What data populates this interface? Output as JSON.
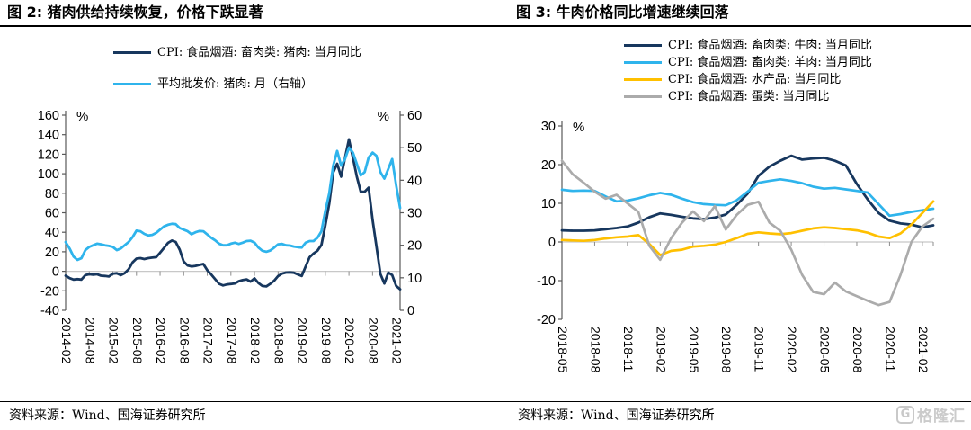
{
  "panels": [
    {
      "title": "图 2:  猪肉供给持续恢复，价格下跌显著",
      "source": "资料来源：Wind、国海证券研究所"
    },
    {
      "title": "图 3:  牛肉价格同比增速继续回落",
      "source": "资料来源：Wind、国海证券研究所"
    }
  ],
  "logo": {
    "letter": "G",
    "text": "格隆汇"
  },
  "colors": {
    "navy": "#17375e",
    "cyan": "#2fb4ec",
    "gold": "#ffc000",
    "gray": "#ababab",
    "zero_line": "#c8c8c8",
    "axis": "#595959"
  },
  "chart_data": [
    {
      "type": "line",
      "title": "图 2: 猪肉供给持续恢复，价格下跌显著",
      "unit_left": "%",
      "unit_right": "%",
      "frequency": "monthly",
      "x_start": "2014-02",
      "x_end": "2021-03",
      "y_left": {
        "min": -40,
        "max": 160,
        "step": 20
      },
      "y_right": {
        "min": 0,
        "max": 60,
        "step": 10
      },
      "x_tick_every": 6,
      "x_tick_labels": [
        "2014-02",
        "2014-08",
        "2015-02",
        "2015-08",
        "2016-02",
        "2016-08",
        "2017-02",
        "2017-08",
        "2018-02",
        "2018-08",
        "2019-02",
        "2019-08",
        "2020-02",
        "2020-08",
        "2021-02"
      ],
      "grid": "zero-line-only",
      "legend_position": "top",
      "series": [
        {
          "key": "pork-cpi",
          "name": "CPI: 食品烟酒: 畜肉类: 猪肉: 当月同比",
          "axis": "left",
          "color": "#17375e",
          "width": 2.8,
          "values": [
            -4.5,
            -7,
            -8.5,
            -8,
            -8.5,
            -4,
            -3,
            -3.5,
            -3,
            -4.5,
            -4.8,
            -5.3,
            -2.5,
            -2,
            -4,
            -2,
            2,
            9,
            13,
            13.5,
            12.5,
            13.5,
            14,
            14.5,
            19,
            24,
            29,
            31.5,
            30,
            22,
            10,
            6,
            5,
            5.5,
            6.5,
            7.5,
            1,
            -3.2,
            -8.1,
            -12.8,
            -14.5,
            -13.5,
            -13,
            -12.4,
            -10.1,
            -9,
            -8.3,
            -10.6,
            -7.3,
            -12,
            -15,
            -15.5,
            -12.8,
            -9.6,
            -4.9,
            -2.4,
            -1.3,
            -1.1,
            -1.5,
            -3.2,
            -4.8,
            5.1,
            14.4,
            18.2,
            21.1,
            27,
            46.7,
            69.3,
            101.3,
            110.2,
            97,
            116,
            135.2,
            116.4,
            96.9,
            81.7,
            81.6,
            85.7,
            52.6,
            25.5,
            -2.8,
            -12.5,
            -1.3,
            -3.9,
            -14.9,
            -18.4
          ]
        },
        {
          "key": "pork-wholesale-price",
          "name": "平均批发价: 猪肉: 月（右轴）",
          "axis": "right",
          "color": "#2fb4ec",
          "width": 2.8,
          "values": [
            21,
            19,
            16.5,
            15.5,
            16,
            18.5,
            19.5,
            20,
            20.5,
            20.3,
            20,
            19.8,
            19.5,
            18.5,
            19,
            20,
            21,
            22.5,
            24.5,
            24.3,
            23.5,
            23,
            23.2,
            23.8,
            24.8,
            25.8,
            26.3,
            26.6,
            26.5,
            25.3,
            24.8,
            24.3,
            23.4,
            24,
            24.4,
            24.3,
            23.3,
            22.3,
            21.5,
            20.5,
            20,
            20,
            20.5,
            20.8,
            20.4,
            20.8,
            21.3,
            21.4,
            20.8,
            19.3,
            18.3,
            18,
            18.4,
            19.3,
            20.3,
            20.4,
            20,
            19.9,
            19.6,
            19.4,
            19.3,
            20.8,
            21.3,
            21.3,
            22.3,
            24.3,
            30.5,
            36,
            44.5,
            49,
            44.5,
            46.5,
            50,
            48.5,
            45,
            41.5,
            42.5,
            47,
            48.5,
            47.5,
            42.5,
            40.5,
            43.5,
            46.5,
            38.5,
            31.5
          ]
        }
      ]
    },
    {
      "type": "line",
      "title": "图 3: 牛肉价格同比增速继续回落",
      "unit_left": "%",
      "frequency": "monthly",
      "x_start": "2018-05",
      "x_end": "2021-03",
      "y_left": {
        "min": -20,
        "max": 30,
        "step": 10
      },
      "x_tick_every": 3,
      "x_tick_labels": [
        "2018-05",
        "2018-08",
        "2018-11",
        "2019-02",
        "2019-05",
        "2019-08",
        "2019-11",
        "2020-02",
        "2020-05",
        "2020-08",
        "2020-11",
        "2021-02"
      ],
      "grid": "zero-line-only",
      "legend_position": "top",
      "series": [
        {
          "key": "beef-cpi",
          "name": "CPI: 食品烟酒: 畜肉类: 牛肉: 当月同比",
          "axis": "left",
          "color": "#17375e",
          "width": 2.8,
          "values": [
            3,
            2.9,
            2.9,
            3,
            3.3,
            3.6,
            4,
            5,
            6.4,
            7.4,
            7,
            6.5,
            6.1,
            5.9,
            6.3,
            7.1,
            9.6,
            12.5,
            17.1,
            19.5,
            21,
            22.3,
            21.3,
            21.6,
            21.8,
            21,
            19.8,
            15,
            11,
            7.5,
            5.5,
            4.8,
            4.5,
            3.8,
            4.3
          ]
        },
        {
          "key": "mutton-cpi",
          "name": "CPI: 食品烟酒: 畜肉类: 羊肉: 当月同比",
          "axis": "left",
          "color": "#2fb4ec",
          "width": 2.7,
          "values": [
            13.5,
            13.2,
            13.3,
            13.2,
            11.8,
            10.5,
            10.7,
            11.3,
            12.1,
            12.7,
            12.2,
            11.2,
            10.3,
            9.8,
            9.6,
            9.5,
            10.8,
            13,
            15.3,
            15.8,
            16.2,
            15.8,
            15.2,
            14.3,
            13.8,
            14,
            13.6,
            13.2,
            12.8,
            9.8,
            6.8,
            7.2,
            7.8,
            8.2,
            8.6
          ]
        },
        {
          "key": "aquatic-cpi",
          "name": "CPI: 食品烟酒: 水产品: 当月同比",
          "axis": "left",
          "color": "#ffc000",
          "width": 2.7,
          "values": [
            0.5,
            0.4,
            0.3,
            0.5,
            0.9,
            1.2,
            1.4,
            1.8,
            -0.5,
            -3.4,
            -2.3,
            -2,
            -1.2,
            -1,
            -0.7,
            0,
            1,
            2.1,
            2.5,
            2.2,
            2,
            2.3,
            2.9,
            3.5,
            3.8,
            3.6,
            3.3,
            3,
            2.4,
            1.4,
            1,
            2.2,
            4.5,
            7.5,
            10.5
          ]
        },
        {
          "key": "egg-cpi",
          "name": "CPI: 食品烟酒: 蛋类: 当月同比",
          "axis": "left",
          "color": "#ababab",
          "width": 2.7,
          "values": [
            21,
            17.5,
            15.3,
            13,
            11.2,
            12.2,
            10,
            7.8,
            -1,
            -4.6,
            1,
            5,
            7.9,
            5.4,
            9.3,
            3.2,
            7,
            9.6,
            10.4,
            5,
            2.9,
            -2,
            -8.5,
            -12.9,
            -13.5,
            -10.5,
            -12.8,
            -14,
            -15.2,
            -16.3,
            -15.5,
            -8.5,
            0,
            4,
            6
          ]
        }
      ]
    }
  ]
}
